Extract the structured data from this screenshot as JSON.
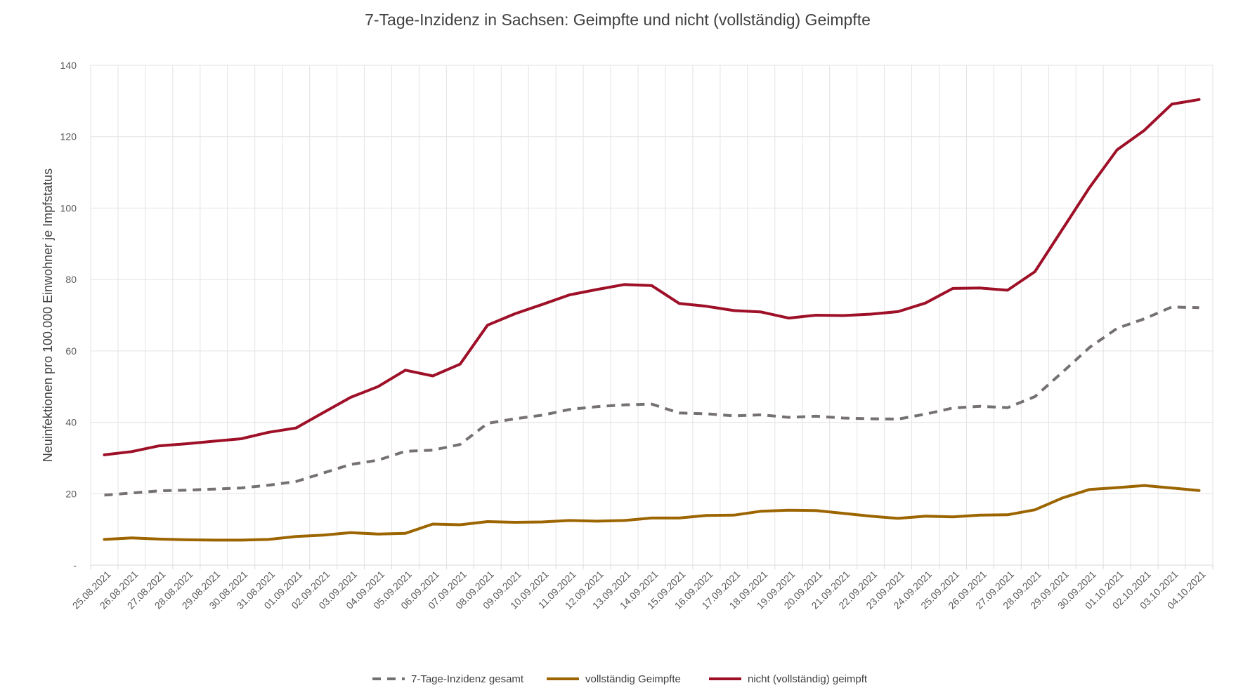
{
  "chart_data": {
    "type": "line",
    "title": "7-Tage-Inzidenz in Sachsen: Geimpfte und nicht (vollständig) Geimpfte",
    "xlabel": "",
    "ylabel": "Neuinfektionen pro 100.000 Einwohner je Impfstatus",
    "ylim": [
      0,
      140
    ],
    "yticks": [
      {
        "value": 0,
        "label": "-"
      },
      {
        "value": 20,
        "label": "20"
      },
      {
        "value": 40,
        "label": "40"
      },
      {
        "value": 60,
        "label": "60"
      },
      {
        "value": 80,
        "label": "80"
      },
      {
        "value": 100,
        "label": "100"
      },
      {
        "value": 120,
        "label": "120"
      },
      {
        "value": 140,
        "label": "140"
      }
    ],
    "grid": true,
    "legend_position": "bottom",
    "categories": [
      "25.08.2021",
      "26.08.2021",
      "27.08.2021",
      "28.08.2021",
      "29.08.2021",
      "30.08.2021",
      "31.08.2021",
      "01.09.2021",
      "02.09.2021",
      "03.09.2021",
      "04.09.2021",
      "05.09.2021",
      "06.09.2021",
      "07.09.2021",
      "08.09.2021",
      "09.09.2021",
      "10.09.2021",
      "11.09.2021",
      "12.09.2021",
      "13.09.2021",
      "14.09.2021",
      "15.09.2021",
      "16.09.2021",
      "17.09.2021",
      "18.09.2021",
      "19.09.2021",
      "20.09.2021",
      "21.09.2021",
      "22.09.2021",
      "23.09.2021",
      "24.09.2021",
      "25.09.2021",
      "26.09.2021",
      "27.09.2021",
      "28.09.2021",
      "29.09.2021",
      "30.09.2021",
      "01.10.2021",
      "02.10.2021",
      "03.10.2021",
      "04.10.2021"
    ],
    "series": [
      {
        "name": "7-Tage-Inzidenz gesamt",
        "color": "#767171",
        "dash": true,
        "values": [
          19.6,
          20.2,
          20.8,
          21.0,
          21.3,
          21.6,
          22.4,
          23.4,
          25.8,
          28.2,
          29.4,
          31.9,
          32.2,
          33.8,
          39.7,
          41.0,
          42.0,
          43.6,
          44.4,
          44.9,
          45.1,
          42.6,
          42.4,
          41.8,
          42.1,
          41.4,
          41.7,
          41.2,
          41.0,
          40.9,
          42.3,
          44.0,
          44.5,
          44.1,
          47.2,
          54.0,
          61.0,
          66.3,
          69.0,
          72.3,
          72.1
        ]
      },
      {
        "name": "vollständig Geimpfte",
        "color": "#9C6500",
        "dash": false,
        "values": [
          7.2,
          7.6,
          7.3,
          7.1,
          7.0,
          7.0,
          7.2,
          8.0,
          8.4,
          9.1,
          8.7,
          8.9,
          11.5,
          11.3,
          12.2,
          12.0,
          12.1,
          12.5,
          12.3,
          12.5,
          13.2,
          13.2,
          13.9,
          14.0,
          15.1,
          15.4,
          15.3,
          14.5,
          13.7,
          13.1,
          13.7,
          13.5,
          14.0,
          14.1,
          15.5,
          18.8,
          21.2,
          21.7,
          22.3,
          21.6,
          20.9
        ]
      },
      {
        "name": "nicht (vollständig) geimpft",
        "color": "#9E1028",
        "dash": false,
        "values": [
          30.9,
          31.8,
          33.4,
          34.0,
          34.7,
          35.4,
          37.2,
          38.4,
          42.7,
          47.0,
          50.0,
          54.6,
          53.0,
          56.3,
          67.2,
          70.4,
          73.0,
          75.7,
          77.2,
          78.6,
          78.3,
          73.3,
          72.5,
          71.3,
          70.9,
          69.2,
          70.0,
          69.9,
          70.3,
          71.0,
          73.4,
          77.5,
          77.6,
          77.0,
          82.2,
          94.0,
          105.8,
          116.3,
          121.8,
          129.1,
          130.4
        ]
      }
    ]
  }
}
